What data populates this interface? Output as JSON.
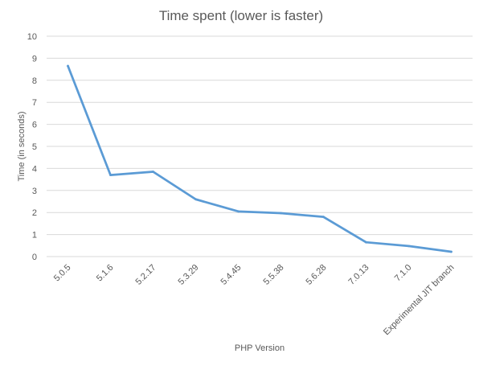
{
  "chart_data": {
    "type": "line",
    "title": "Time spent (lower is faster)",
    "xlabel": "PHP Version",
    "ylabel": "Time (in seconds)",
    "categories": [
      "5.0.5",
      "5.1.6",
      "5.2.17",
      "5.3.29",
      "5.4.45",
      "5.5.38",
      "5.6.28",
      "7.0.13",
      "7.1.0",
      "Experimental JIT branch"
    ],
    "series": [
      {
        "values": [
          8.65,
          3.7,
          3.85,
          2.6,
          2.05,
          1.97,
          1.8,
          0.65,
          0.48,
          0.22
        ],
        "color": "#5b9bd5"
      }
    ],
    "ylim": [
      0,
      10
    ],
    "yticks": [
      0,
      1,
      2,
      3,
      4,
      5,
      6,
      7,
      8,
      9,
      10
    ],
    "grid": true,
    "legend": "none"
  }
}
